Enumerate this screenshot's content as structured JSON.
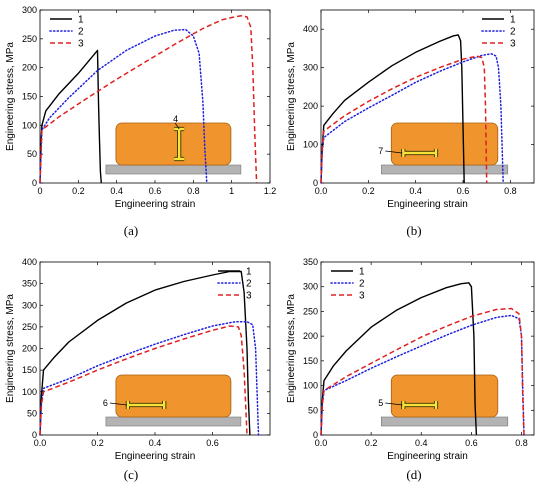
{
  "chart_data": [
    {
      "panel": "(a)",
      "type": "line",
      "xlabel": "Engineering strain",
      "ylabel": "Engineering stress, MPa",
      "xlim": [
        0,
        1.2
      ],
      "ylim": [
        0,
        300
      ],
      "xticks": [
        0,
        0.2,
        0.4,
        0.6,
        0.8,
        1.0,
        1.2
      ],
      "xtick_labels": [
        "0",
        "0.2",
        "0.4",
        "0.6",
        "0.8",
        "1",
        "1.2"
      ],
      "yticks": [
        0,
        50,
        100,
        150,
        200,
        250,
        300
      ],
      "ytick_labels": [
        "0",
        "50",
        "100",
        "150",
        "200",
        "250",
        "300"
      ],
      "legend_position": "top-left",
      "inset_label": "4",
      "inset_orientation": "vertical",
      "series": [
        {
          "name": "1",
          "color": "#000000",
          "dash": "solid",
          "points": [
            [
              0,
              0
            ],
            [
              0.005,
              70
            ],
            [
              0.01,
              100
            ],
            [
              0.03,
              125
            ],
            [
              0.1,
              155
            ],
            [
              0.2,
              190
            ],
            [
              0.3,
              230
            ],
            [
              0.305,
              140
            ],
            [
              0.31,
              80
            ],
            [
              0.315,
              20
            ],
            [
              0.32,
              0
            ]
          ]
        },
        {
          "name": "2",
          "color": "#1f1fe0",
          "dash": "dotted",
          "points": [
            [
              0,
              0
            ],
            [
              0.01,
              92
            ],
            [
              0.05,
              113
            ],
            [
              0.15,
              148
            ],
            [
              0.3,
              195
            ],
            [
              0.45,
              230
            ],
            [
              0.6,
              255
            ],
            [
              0.7,
              265
            ],
            [
              0.76,
              266
            ],
            [
              0.8,
              255
            ],
            [
              0.83,
              225
            ],
            [
              0.85,
              140
            ],
            [
              0.86,
              60
            ],
            [
              0.87,
              0
            ]
          ]
        },
        {
          "name": "3",
          "color": "#e02020",
          "dash": "dashed",
          "points": [
            [
              0,
              0
            ],
            [
              0.01,
              92
            ],
            [
              0.1,
              115
            ],
            [
              0.25,
              148
            ],
            [
              0.4,
              180
            ],
            [
              0.55,
              210
            ],
            [
              0.7,
              240
            ],
            [
              0.85,
              268
            ],
            [
              0.95,
              283
            ],
            [
              1.0,
              287
            ],
            [
              1.05,
              290
            ],
            [
              1.08,
              288
            ],
            [
              1.1,
              270
            ],
            [
              1.11,
              200
            ],
            [
              1.12,
              90
            ],
            [
              1.13,
              0
            ]
          ]
        }
      ]
    },
    {
      "panel": "(b)",
      "type": "line",
      "xlabel": "Engineering strain",
      "ylabel": "Engineering stress, MPa",
      "xlim": [
        0,
        0.9
      ],
      "ylim": [
        0,
        450
      ],
      "xticks": [
        0,
        0.2,
        0.4,
        0.6,
        0.8
      ],
      "xtick_labels": [
        "0.0",
        "0.2",
        "0.4",
        "0.6",
        "0.8"
      ],
      "yticks": [
        0,
        100,
        200,
        300,
        400
      ],
      "ytick_labels": [
        "0",
        "100",
        "200",
        "300",
        "400"
      ],
      "legend_position": "top-right",
      "inset_label": "7",
      "inset_orientation": "horizontal",
      "series": [
        {
          "name": "1",
          "color": "#000000",
          "dash": "solid",
          "points": [
            [
              0,
              0
            ],
            [
              0.005,
              90
            ],
            [
              0.012,
              150
            ],
            [
              0.05,
              180
            ],
            [
              0.1,
              215
            ],
            [
              0.2,
              262
            ],
            [
              0.3,
              305
            ],
            [
              0.4,
              340
            ],
            [
              0.5,
              368
            ],
            [
              0.56,
              383
            ],
            [
              0.58,
              385
            ],
            [
              0.59,
              370
            ],
            [
              0.595,
              300
            ],
            [
              0.6,
              150
            ],
            [
              0.605,
              0
            ]
          ]
        },
        {
          "name": "2",
          "color": "#1f1fe0",
          "dash": "dotted",
          "points": [
            [
              0,
              0
            ],
            [
              0.005,
              80
            ],
            [
              0.012,
              118
            ],
            [
              0.1,
              160
            ],
            [
              0.2,
              195
            ],
            [
              0.3,
              228
            ],
            [
              0.4,
              262
            ],
            [
              0.5,
              290
            ],
            [
              0.6,
              315
            ],
            [
              0.68,
              332
            ],
            [
              0.72,
              336
            ],
            [
              0.74,
              330
            ],
            [
              0.75,
              300
            ],
            [
              0.76,
              200
            ],
            [
              0.77,
              0
            ]
          ]
        },
        {
          "name": "3",
          "color": "#e02020",
          "dash": "dashed",
          "points": [
            [
              0,
              0
            ],
            [
              0.005,
              90
            ],
            [
              0.012,
              135
            ],
            [
              0.1,
              175
            ],
            [
              0.2,
              212
            ],
            [
              0.3,
              245
            ],
            [
              0.4,
              275
            ],
            [
              0.5,
              300
            ],
            [
              0.6,
              322
            ],
            [
              0.66,
              330
            ],
            [
              0.68,
              326
            ],
            [
              0.69,
              300
            ],
            [
              0.695,
              200
            ],
            [
              0.7,
              0
            ]
          ]
        }
      ]
    },
    {
      "panel": "(c)",
      "type": "line",
      "xlabel": "Engineering strain",
      "ylabel": "Engineering stress, MPa",
      "xlim": [
        0,
        0.8
      ],
      "ylim": [
        0,
        400
      ],
      "xticks": [
        0,
        0.2,
        0.4,
        0.6
      ],
      "xtick_labels": [
        "0.0",
        "0.2",
        "0.4",
        "0.6"
      ],
      "yticks": [
        0,
        50,
        100,
        150,
        200,
        250,
        300,
        350,
        400
      ],
      "ytick_labels": [
        "0",
        "50",
        "100",
        "150",
        "200",
        "250",
        "300",
        "350",
        "400"
      ],
      "legend_position": "top-right",
      "inset_label": "6",
      "inset_orientation": "horizontal",
      "series": [
        {
          "name": "1",
          "color": "#000000",
          "dash": "solid",
          "points": [
            [
              0,
              0
            ],
            [
              0.005,
              90
            ],
            [
              0.012,
              150
            ],
            [
              0.05,
              180
            ],
            [
              0.1,
              215
            ],
            [
              0.2,
              265
            ],
            [
              0.3,
              305
            ],
            [
              0.4,
              335
            ],
            [
              0.5,
              355
            ],
            [
              0.6,
              370
            ],
            [
              0.66,
              378
            ],
            [
              0.7,
              378
            ],
            [
              0.71,
              330
            ],
            [
              0.72,
              200
            ],
            [
              0.725,
              80
            ],
            [
              0.73,
              0
            ]
          ]
        },
        {
          "name": "2",
          "color": "#1f1fe0",
          "dash": "dotted",
          "points": [
            [
              0,
              0
            ],
            [
              0.005,
              70
            ],
            [
              0.012,
              108
            ],
            [
              0.1,
              130
            ],
            [
              0.2,
              160
            ],
            [
              0.3,
              186
            ],
            [
              0.4,
              210
            ],
            [
              0.5,
              232
            ],
            [
              0.6,
              252
            ],
            [
              0.68,
              262
            ],
            [
              0.72,
              262
            ],
            [
              0.74,
              255
            ],
            [
              0.75,
              200
            ],
            [
              0.76,
              0
            ]
          ]
        },
        {
          "name": "3",
          "color": "#e02020",
          "dash": "dashed",
          "points": [
            [
              0,
              0
            ],
            [
              0.005,
              70
            ],
            [
              0.012,
              100
            ],
            [
              0.1,
              122
            ],
            [
              0.2,
              150
            ],
            [
              0.3,
              176
            ],
            [
              0.4,
              200
            ],
            [
              0.5,
              222
            ],
            [
              0.6,
              242
            ],
            [
              0.66,
              252
            ],
            [
              0.69,
              250
            ],
            [
              0.7,
              230
            ],
            [
              0.71,
              150
            ],
            [
              0.72,
              0
            ]
          ]
        }
      ]
    },
    {
      "panel": "(d)",
      "type": "line",
      "xlabel": "Engineering strain",
      "ylabel": "Engineering stress, MPa",
      "xlim": [
        0,
        0.85
      ],
      "ylim": [
        0,
        350
      ],
      "xticks": [
        0,
        0.2,
        0.4,
        0.6,
        0.8
      ],
      "xtick_labels": [
        "0.0",
        "0.2",
        "0.4",
        "0.6",
        "0.8"
      ],
      "yticks": [
        0,
        50,
        100,
        150,
        200,
        250,
        300,
        350
      ],
      "ytick_labels": [
        "0",
        "50",
        "100",
        "150",
        "200",
        "250",
        "300",
        "350"
      ],
      "legend_position": "top-left",
      "inset_label": "5",
      "inset_orientation": "horizontal",
      "series": [
        {
          "name": "1",
          "color": "#000000",
          "dash": "solid",
          "points": [
            [
              0,
              0
            ],
            [
              0.005,
              70
            ],
            [
              0.012,
              110
            ],
            [
              0.05,
              140
            ],
            [
              0.1,
              170
            ],
            [
              0.2,
              218
            ],
            [
              0.3,
              252
            ],
            [
              0.4,
              278
            ],
            [
              0.5,
              298
            ],
            [
              0.56,
              306
            ],
            [
              0.59,
              308
            ],
            [
              0.6,
              300
            ],
            [
              0.61,
              200
            ],
            [
              0.615,
              60
            ],
            [
              0.62,
              0
            ]
          ]
        },
        {
          "name": "2",
          "color": "#1f1fe0",
          "dash": "dotted",
          "points": [
            [
              0,
              0
            ],
            [
              0.005,
              60
            ],
            [
              0.012,
              90
            ],
            [
              0.1,
              110
            ],
            [
              0.2,
              135
            ],
            [
              0.3,
              158
            ],
            [
              0.4,
              180
            ],
            [
              0.5,
              202
            ],
            [
              0.6,
              222
            ],
            [
              0.7,
              238
            ],
            [
              0.76,
              242
            ],
            [
              0.79,
              235
            ],
            [
              0.8,
              200
            ],
            [
              0.805,
              100
            ],
            [
              0.81,
              0
            ]
          ]
        },
        {
          "name": "3",
          "color": "#e02020",
          "dash": "dashed",
          "points": [
            [
              0,
              0
            ],
            [
              0.005,
              60
            ],
            [
              0.012,
              90
            ],
            [
              0.1,
              118
            ],
            [
              0.2,
              145
            ],
            [
              0.3,
              172
            ],
            [
              0.4,
              198
            ],
            [
              0.5,
              220
            ],
            [
              0.6,
              240
            ],
            [
              0.7,
              254
            ],
            [
              0.76,
              256
            ],
            [
              0.79,
              245
            ],
            [
              0.8,
              200
            ],
            [
              0.805,
              80
            ],
            [
              0.81,
              0
            ]
          ]
        }
      ]
    }
  ]
}
